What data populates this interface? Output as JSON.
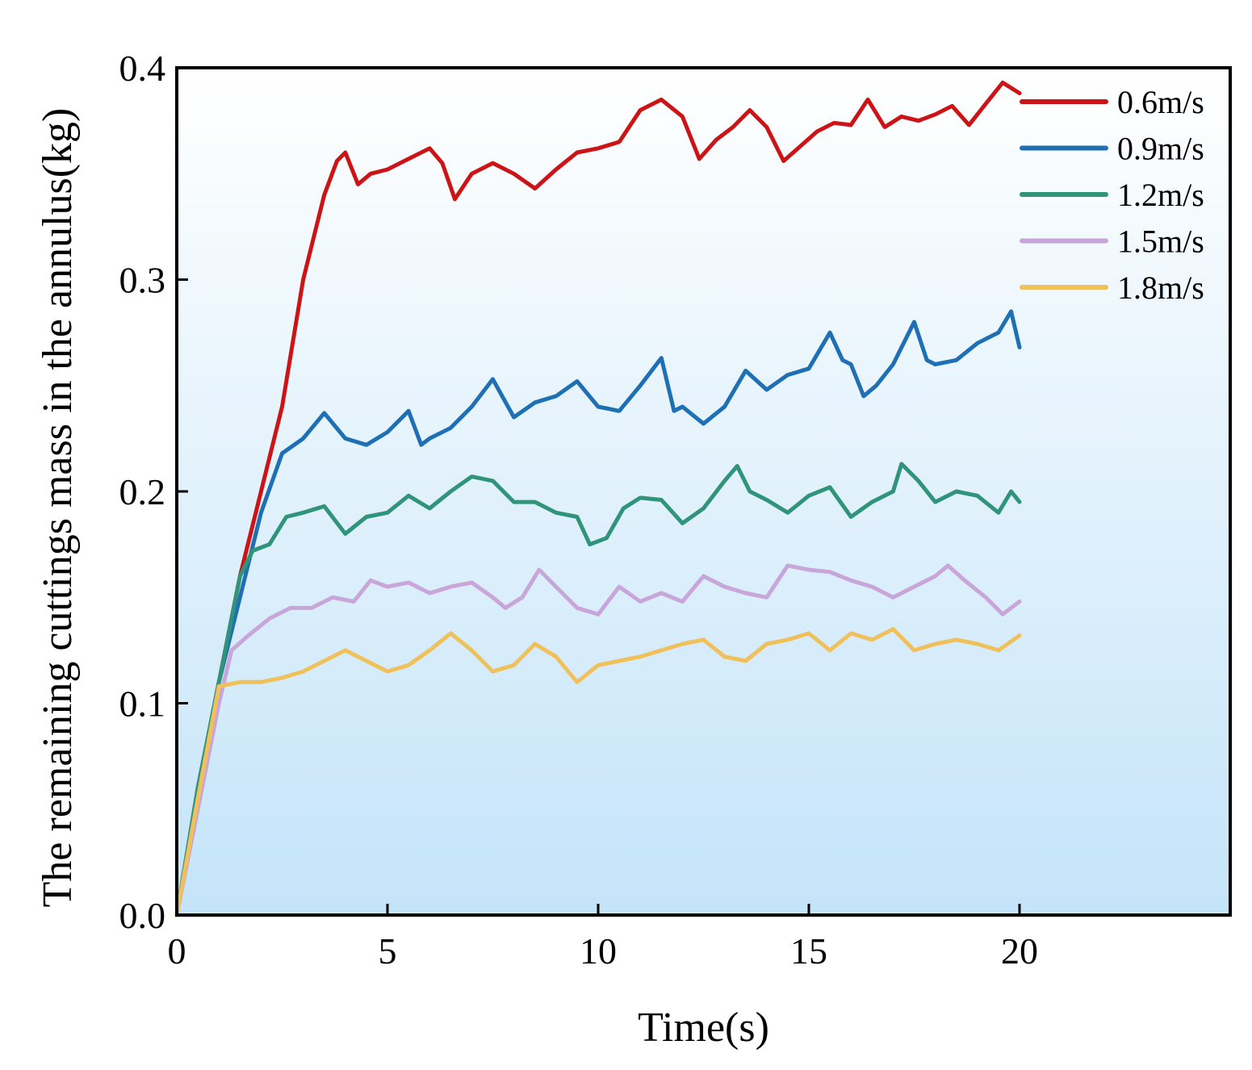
{
  "chart_data": {
    "type": "line",
    "title": "",
    "xlabel": "Time(s)",
    "ylabel": "The remaining cuttings mass in the annulus(kg)",
    "xlim": [
      0,
      25
    ],
    "ylim": [
      0,
      0.4
    ],
    "xticks": [
      0,
      5,
      10,
      15,
      20
    ],
    "yticks": [
      0.0,
      0.1,
      0.2,
      0.3,
      0.4
    ],
    "xtick_labels": [
      "0",
      "5",
      "10",
      "15",
      "20"
    ],
    "ytick_labels": [
      "0.0",
      "0.1",
      "0.2",
      "0.3",
      "0.4"
    ],
    "grid": false,
    "legend_position": "top-right",
    "background": "light blue vertical gradient",
    "series": [
      {
        "name": "0.6m/s",
        "color": "#cc1417",
        "x": [
          0,
          0.5,
          1.0,
          1.5,
          2.0,
          2.5,
          3.0,
          3.5,
          3.8,
          4.0,
          4.3,
          4.6,
          5.0,
          5.5,
          6.0,
          6.3,
          6.6,
          7.0,
          7.5,
          8.0,
          8.5,
          9.0,
          9.5,
          10.0,
          10.5,
          11.0,
          11.5,
          12.0,
          12.4,
          12.8,
          13.2,
          13.6,
          14.0,
          14.4,
          14.8,
          15.2,
          15.6,
          16.0,
          16.4,
          16.8,
          17.2,
          17.6,
          18.0,
          18.4,
          18.8,
          19.2,
          19.6,
          20.0
        ],
        "y": [
          0.0,
          0.06,
          0.11,
          0.16,
          0.2,
          0.24,
          0.3,
          0.34,
          0.356,
          0.36,
          0.345,
          0.35,
          0.352,
          0.357,
          0.362,
          0.355,
          0.338,
          0.35,
          0.355,
          0.35,
          0.343,
          0.352,
          0.36,
          0.362,
          0.365,
          0.38,
          0.385,
          0.377,
          0.357,
          0.366,
          0.372,
          0.38,
          0.372,
          0.356,
          0.363,
          0.37,
          0.374,
          0.373,
          0.385,
          0.372,
          0.377,
          0.375,
          0.378,
          0.382,
          0.373,
          0.383,
          0.393,
          0.388
        ]
      },
      {
        "name": "0.9m/s",
        "color": "#1f6fb5",
        "x": [
          0,
          0.5,
          1.0,
          1.5,
          2.0,
          2.5,
          3.0,
          3.5,
          4.0,
          4.5,
          5.0,
          5.5,
          5.8,
          6.0,
          6.5,
          7.0,
          7.5,
          8.0,
          8.5,
          9.0,
          9.5,
          10.0,
          10.5,
          11.0,
          11.5,
          11.8,
          12.0,
          12.5,
          13.0,
          13.5,
          14.0,
          14.5,
          15.0,
          15.5,
          15.8,
          16.0,
          16.3,
          16.6,
          17.0,
          17.5,
          17.8,
          18.0,
          18.5,
          19.0,
          19.5,
          19.8,
          20.0
        ],
        "y": [
          0.0,
          0.06,
          0.11,
          0.15,
          0.19,
          0.218,
          0.225,
          0.237,
          0.225,
          0.222,
          0.228,
          0.238,
          0.222,
          0.225,
          0.23,
          0.24,
          0.253,
          0.235,
          0.242,
          0.245,
          0.252,
          0.24,
          0.238,
          0.25,
          0.263,
          0.238,
          0.24,
          0.232,
          0.24,
          0.257,
          0.248,
          0.255,
          0.258,
          0.275,
          0.262,
          0.26,
          0.245,
          0.25,
          0.26,
          0.28,
          0.262,
          0.26,
          0.262,
          0.27,
          0.275,
          0.285,
          0.268
        ]
      },
      {
        "name": "1.2m/s",
        "color": "#2f9479",
        "x": [
          0,
          0.5,
          1.0,
          1.5,
          1.8,
          2.2,
          2.6,
          3.0,
          3.5,
          4.0,
          4.5,
          5.0,
          5.5,
          6.0,
          6.5,
          7.0,
          7.5,
          8.0,
          8.5,
          9.0,
          9.5,
          9.8,
          10.2,
          10.6,
          11.0,
          11.5,
          12.0,
          12.5,
          13.0,
          13.3,
          13.6,
          14.0,
          14.5,
          15.0,
          15.5,
          16.0,
          16.5,
          17.0,
          17.2,
          17.6,
          18.0,
          18.5,
          19.0,
          19.5,
          19.8,
          20.0
        ],
        "y": [
          0.0,
          0.06,
          0.11,
          0.16,
          0.172,
          0.175,
          0.188,
          0.19,
          0.193,
          0.18,
          0.188,
          0.19,
          0.198,
          0.192,
          0.2,
          0.207,
          0.205,
          0.195,
          0.195,
          0.19,
          0.188,
          0.175,
          0.178,
          0.192,
          0.197,
          0.196,
          0.185,
          0.192,
          0.205,
          0.212,
          0.2,
          0.196,
          0.19,
          0.198,
          0.202,
          0.188,
          0.195,
          0.2,
          0.213,
          0.205,
          0.195,
          0.2,
          0.198,
          0.19,
          0.2,
          0.195
        ]
      },
      {
        "name": "1.5m/s",
        "color": "#c9a6d9",
        "x": [
          0,
          0.5,
          1.0,
          1.3,
          1.7,
          2.2,
          2.7,
          3.2,
          3.7,
          4.2,
          4.6,
          5.0,
          5.5,
          6.0,
          6.5,
          7.0,
          7.5,
          7.8,
          8.2,
          8.6,
          9.0,
          9.5,
          10.0,
          10.5,
          11.0,
          11.5,
          12.0,
          12.5,
          13.0,
          13.5,
          14.0,
          14.5,
          15.0,
          15.5,
          16.0,
          16.5,
          17.0,
          17.5,
          18.0,
          18.3,
          18.7,
          19.2,
          19.6,
          20.0
        ],
        "y": [
          0.0,
          0.05,
          0.1,
          0.125,
          0.132,
          0.14,
          0.145,
          0.145,
          0.15,
          0.148,
          0.158,
          0.155,
          0.157,
          0.152,
          0.155,
          0.157,
          0.15,
          0.145,
          0.15,
          0.163,
          0.155,
          0.145,
          0.142,
          0.155,
          0.148,
          0.152,
          0.148,
          0.16,
          0.155,
          0.152,
          0.15,
          0.165,
          0.163,
          0.162,
          0.158,
          0.155,
          0.15,
          0.155,
          0.16,
          0.165,
          0.158,
          0.15,
          0.142,
          0.148
        ]
      },
      {
        "name": "1.8m/s",
        "color": "#f0c05a",
        "x": [
          0,
          0.5,
          1.0,
          1.5,
          2.0,
          2.5,
          3.0,
          3.5,
          4.0,
          4.5,
          5.0,
          5.5,
          6.0,
          6.5,
          7.0,
          7.5,
          8.0,
          8.5,
          9.0,
          9.5,
          10.0,
          10.5,
          11.0,
          11.5,
          12.0,
          12.5,
          13.0,
          13.5,
          14.0,
          14.5,
          15.0,
          15.5,
          16.0,
          16.5,
          17.0,
          17.5,
          18.0,
          18.5,
          19.0,
          19.5,
          20.0
        ],
        "y": [
          0.0,
          0.055,
          0.108,
          0.11,
          0.11,
          0.112,
          0.115,
          0.12,
          0.125,
          0.12,
          0.115,
          0.118,
          0.125,
          0.133,
          0.125,
          0.115,
          0.118,
          0.128,
          0.122,
          0.11,
          0.118,
          0.12,
          0.122,
          0.125,
          0.128,
          0.13,
          0.122,
          0.12,
          0.128,
          0.13,
          0.133,
          0.125,
          0.133,
          0.13,
          0.135,
          0.125,
          0.128,
          0.13,
          0.128,
          0.125,
          0.132
        ]
      }
    ]
  }
}
